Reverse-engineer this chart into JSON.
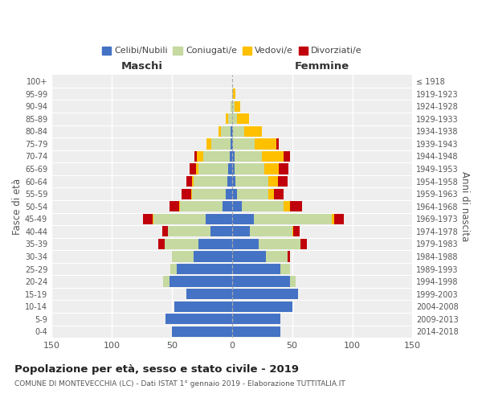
{
  "age_groups": [
    "0-4",
    "5-9",
    "10-14",
    "15-19",
    "20-24",
    "25-29",
    "30-34",
    "35-39",
    "40-44",
    "45-49",
    "50-54",
    "55-59",
    "60-64",
    "65-69",
    "70-74",
    "75-79",
    "80-84",
    "85-89",
    "90-94",
    "95-99",
    "100+"
  ],
  "birth_years": [
    "2014-2018",
    "2009-2013",
    "2004-2008",
    "1999-2003",
    "1994-1998",
    "1989-1993",
    "1984-1988",
    "1979-1983",
    "1974-1978",
    "1969-1973",
    "1964-1968",
    "1959-1963",
    "1954-1958",
    "1949-1953",
    "1944-1948",
    "1939-1943",
    "1934-1938",
    "1929-1933",
    "1924-1928",
    "1919-1923",
    "≤ 1918"
  ],
  "maschi": {
    "celibi": [
      50,
      55,
      48,
      38,
      52,
      46,
      32,
      28,
      18,
      22,
      8,
      5,
      4,
      3,
      2,
      1,
      1,
      0,
      0,
      0,
      0
    ],
    "coniugati": [
      0,
      0,
      0,
      0,
      5,
      5,
      18,
      28,
      35,
      43,
      35,
      28,
      28,
      25,
      22,
      16,
      8,
      3,
      1,
      0,
      0
    ],
    "vedovi": [
      0,
      0,
      0,
      0,
      0,
      0,
      0,
      0,
      0,
      1,
      1,
      1,
      1,
      2,
      5,
      4,
      2,
      2,
      0,
      0,
      0
    ],
    "divorziati": [
      0,
      0,
      0,
      0,
      0,
      0,
      0,
      5,
      5,
      8,
      8,
      8,
      5,
      5,
      2,
      0,
      0,
      0,
      0,
      0,
      0
    ]
  },
  "femmine": {
    "nubili": [
      40,
      40,
      50,
      55,
      48,
      40,
      28,
      22,
      15,
      18,
      8,
      4,
      3,
      2,
      2,
      1,
      1,
      0,
      0,
      0,
      0
    ],
    "coniugate": [
      0,
      0,
      0,
      0,
      5,
      8,
      18,
      35,
      35,
      65,
      35,
      26,
      27,
      25,
      23,
      18,
      9,
      4,
      2,
      1,
      0
    ],
    "vedove": [
      0,
      0,
      0,
      0,
      0,
      0,
      0,
      0,
      1,
      2,
      5,
      5,
      8,
      12,
      18,
      18,
      15,
      10,
      5,
      2,
      0
    ],
    "divorziate": [
      0,
      0,
      0,
      0,
      0,
      0,
      2,
      5,
      5,
      8,
      10,
      8,
      8,
      8,
      5,
      2,
      0,
      0,
      0,
      0,
      0
    ]
  },
  "color_celibi": "#4472c4",
  "color_coniugati": "#c5d9a0",
  "color_vedovi": "#ffc000",
  "color_divorziati": "#c0000a",
  "title": "Popolazione per età, sesso e stato civile - 2019",
  "subtitle": "COMUNE DI MONTEVECCHIA (LC) - Dati ISTAT 1° gennaio 2019 - Elaborazione TUTTITALIA.IT",
  "label_maschi": "Maschi",
  "label_femmine": "Femmine",
  "ylabel_left": "Fasce di età",
  "ylabel_right": "Anni di nascita",
  "xlim": 150,
  "bg_color": "#ffffff",
  "plot_bg_color": "#eeeeee",
  "grid_color": "#ffffff",
  "legend_labels": [
    "Celibi/Nubili",
    "Coniugati/e",
    "Vedovi/e",
    "Divorziati/e"
  ]
}
